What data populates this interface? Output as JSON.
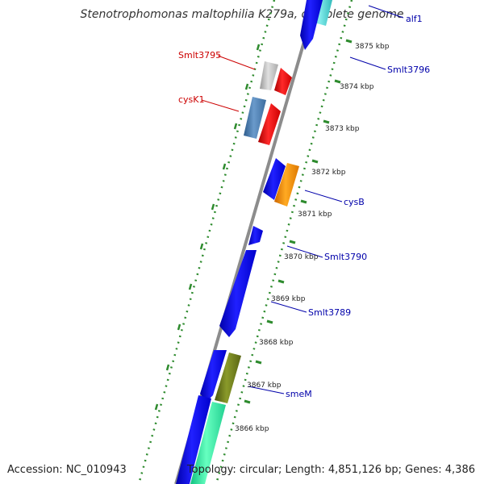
{
  "title": "Stenotrophomonas maltophilia K279a, complete genome",
  "accession": "Accession: NC_010943",
  "summary": "Topology: circular; Length: 4,851,126 bp; Genes: 4,386",
  "ticks": [
    "3875 kbp",
    "3874 kbp",
    "3873 kbp",
    "3872 kbp",
    "3871 kbp",
    "3870 kbp",
    "3869 kbp",
    "3868 kbp",
    "3867 kbp",
    "3866 kbp"
  ],
  "gene_labels": [
    {
      "name": "alf1",
      "color": "#0000aa"
    },
    {
      "name": "Smlt3796",
      "color": "#0000aa"
    },
    {
      "name": "Smlt3795",
      "color": "#cc0000"
    },
    {
      "name": "cysK1",
      "color": "#cc0000"
    },
    {
      "name": "cysB",
      "color": "#0000aa"
    },
    {
      "name": "Smlt3790",
      "color": "#0000aa"
    },
    {
      "name": "Smlt3789",
      "color": "#0000aa"
    },
    {
      "name": "smeM",
      "color": "#0000aa"
    }
  ],
  "colors": {
    "backbone": "#8c8c8c",
    "dotted_ring": "#2e8b2e",
    "gene_blue": "#0000ee",
    "gene_red": "#ff0000",
    "gene_orange": "#ff9900",
    "gene_gray": "#c8c8c8",
    "gene_steelblue": "#4f7fb0",
    "gene_olive": "#6b7a1a",
    "gene_aqua": "#33ffaa",
    "gene_cyan": "#44dddd"
  }
}
